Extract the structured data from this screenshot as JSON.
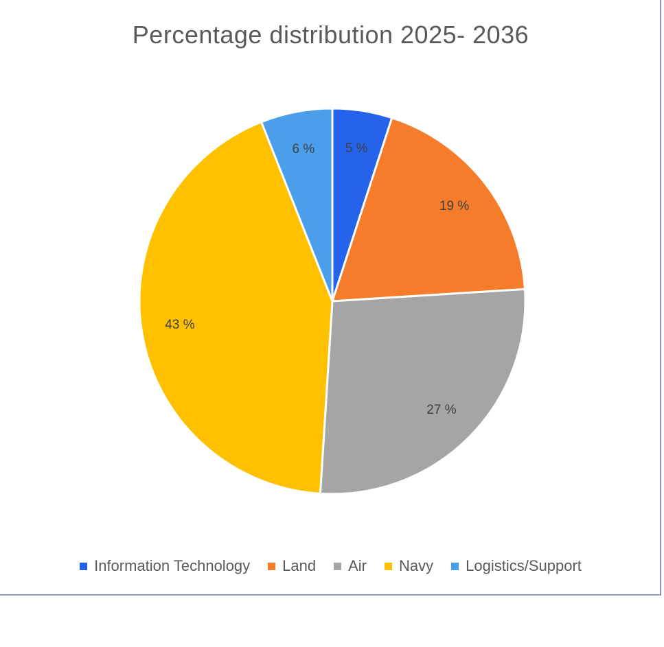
{
  "chart_data": {
    "type": "pie",
    "title": "Percentage distribution 2025- 2036",
    "slices": [
      {
        "label": "Information Technology",
        "value": 5,
        "display": "5 %",
        "color": "#2563eb"
      },
      {
        "label": "Land",
        "value": 19,
        "display": "19 %",
        "color": "#f47c2a"
      },
      {
        "label": "Air",
        "value": 27,
        "display": "27 %",
        "color": "#a5a5a5"
      },
      {
        "label": "Navy",
        "value": 43,
        "display": "43 %",
        "color": "#ffc000"
      },
      {
        "label": "Logistics/Support",
        "value": 6,
        "display": "6 %",
        "color": "#4a9eea"
      }
    ],
    "legend_position": "bottom",
    "start_angle": "12 o'clock",
    "direction": "clockwise"
  }
}
